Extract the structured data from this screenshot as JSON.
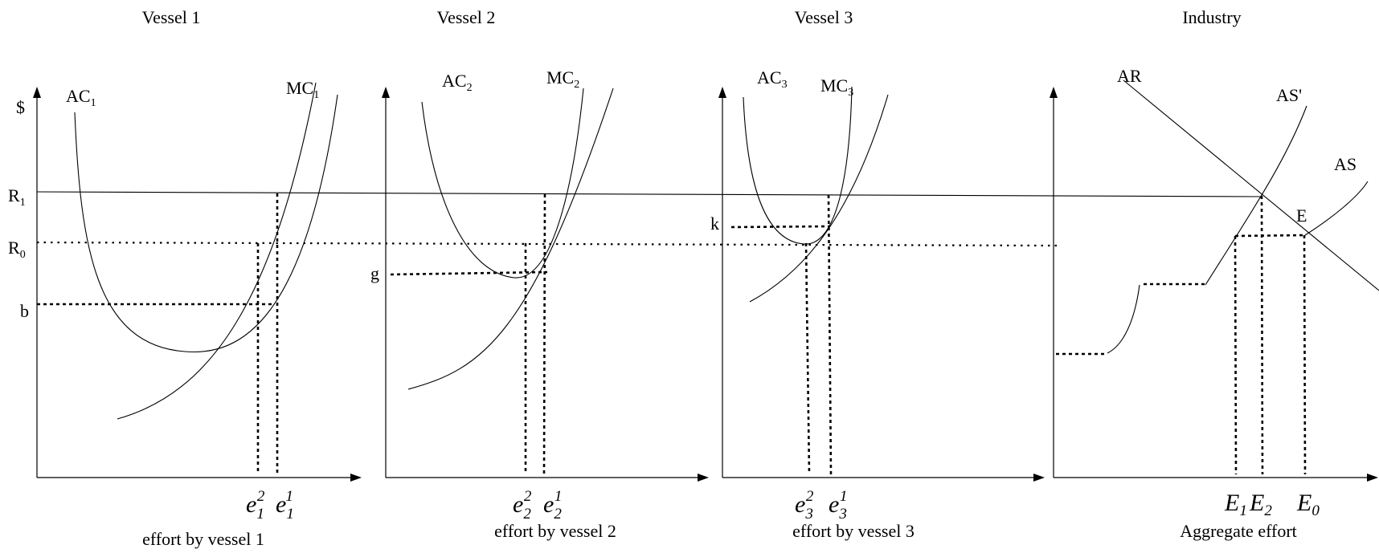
{
  "panels": {
    "vessel1": {
      "title": "Vessel 1",
      "xlabel": "effort by vessel 1",
      "ylabel": "$",
      "ac": {
        "main": "AC",
        "sub": "1"
      },
      "mc": {
        "main": "MC",
        "sub": "1"
      },
      "e_a": {
        "main": "e",
        "sub": "1",
        "sup": "2"
      },
      "e_b": {
        "main": "e",
        "sub": "1",
        "sup": "1"
      },
      "y_labels": {
        "r1": {
          "main": "R",
          "sub": "1"
        },
        "r0": {
          "main": "R",
          "sub": "0"
        },
        "b": "b"
      }
    },
    "vessel2": {
      "title": "Vessel 2",
      "xlabel": "effort by vessel 2",
      "ac": {
        "main": "AC",
        "sub": "2"
      },
      "mc": {
        "main": "MC",
        "sub": "2"
      },
      "e_a": {
        "main": "e",
        "sub": "2",
        "sup": "2"
      },
      "e_b": {
        "main": "e",
        "sub": "2",
        "sup": "1"
      },
      "g": "g"
    },
    "vessel3": {
      "title": "Vessel 3",
      "xlabel": "effort by vessel 3",
      "ac": {
        "main": "AC",
        "sub": "3"
      },
      "mc": {
        "main": "MC",
        "sub": "3"
      },
      "e_a": {
        "main": "e",
        "sub": "3",
        "sup": "2"
      },
      "e_b": {
        "main": "e",
        "sub": "3",
        "sup": "1"
      },
      "k": "k"
    },
    "industry": {
      "title": "Industry",
      "xlabel": "Aggregate effort",
      "ar": "AR",
      "as_prime": "AS'",
      "as": "AS",
      "e_point": "E",
      "E1": {
        "main": "E",
        "sub": "1"
      },
      "E2": {
        "main": "E",
        "sub": "2"
      },
      "E0": {
        "main": "E",
        "sub": "0"
      }
    }
  }
}
